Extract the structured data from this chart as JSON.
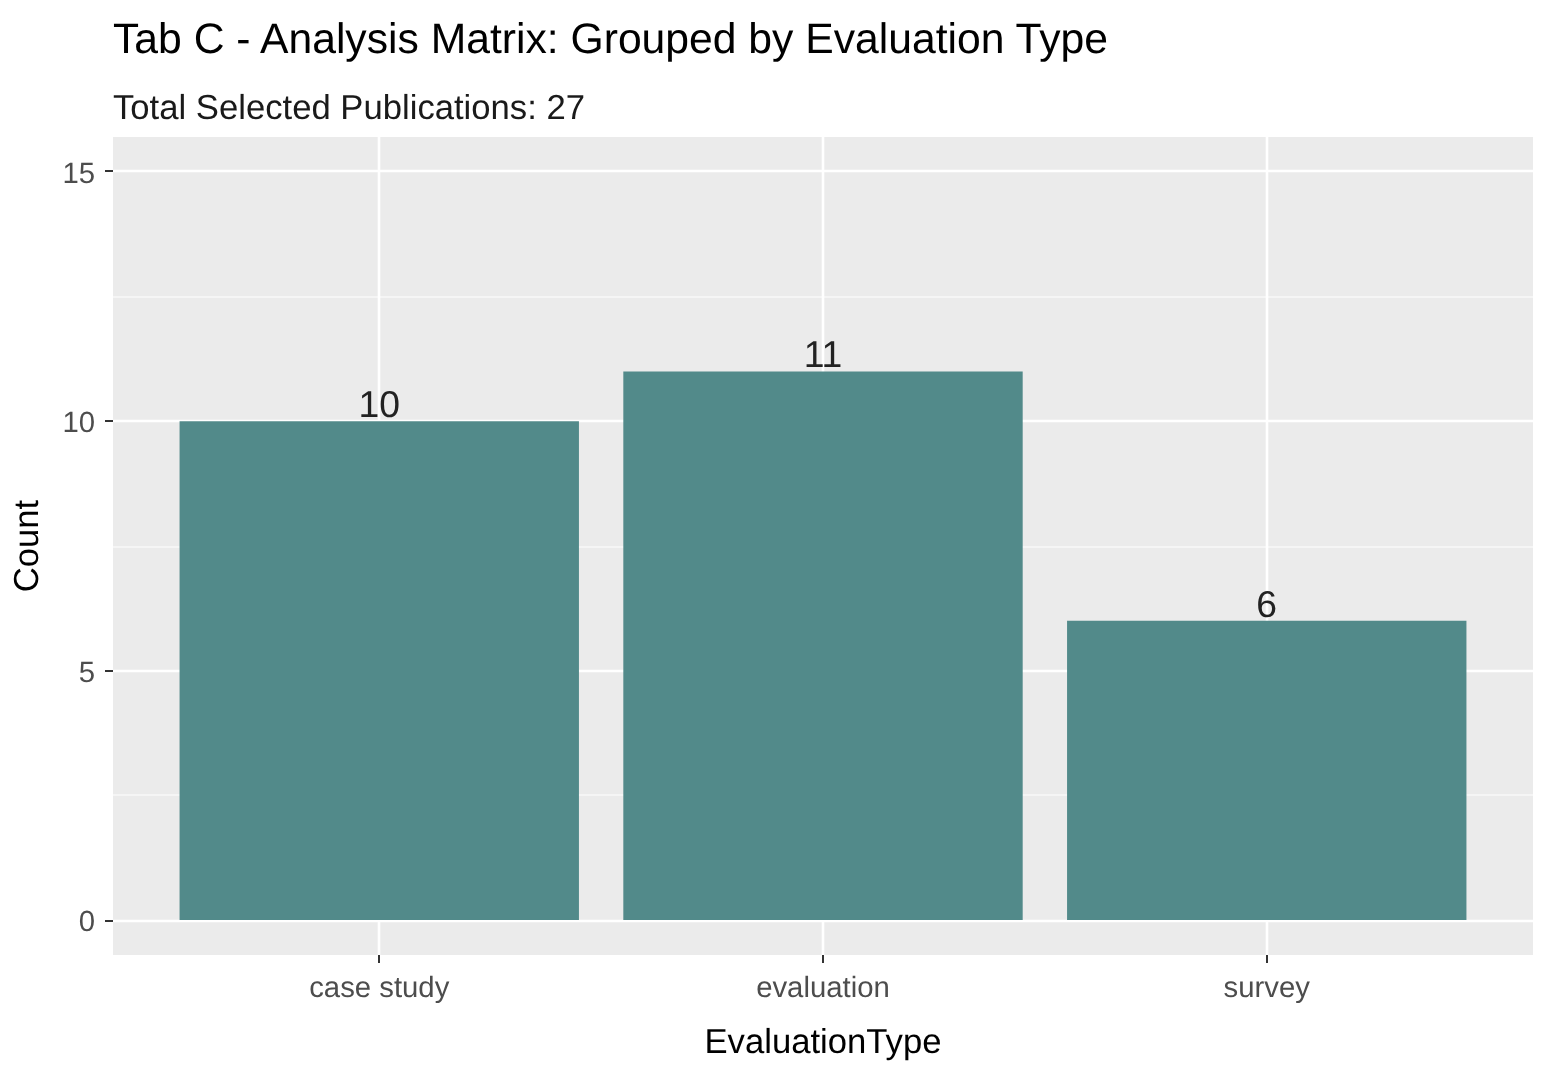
{
  "chart_data": {
    "type": "bar",
    "title": "Tab C - Analysis Matrix: Grouped by Evaluation Type",
    "subtitle": "Total Selected Publications: 27",
    "xlabel": "EvaluationType",
    "ylabel": "Count",
    "categories": [
      "case study",
      "evaluation",
      "survey"
    ],
    "values": [
      10,
      11,
      6
    ],
    "color": "#528a8a",
    "ylim": [
      -0.7,
      15.7
    ],
    "yticks": [
      0,
      5,
      10,
      15
    ],
    "grid": true,
    "data_labels": true
  }
}
